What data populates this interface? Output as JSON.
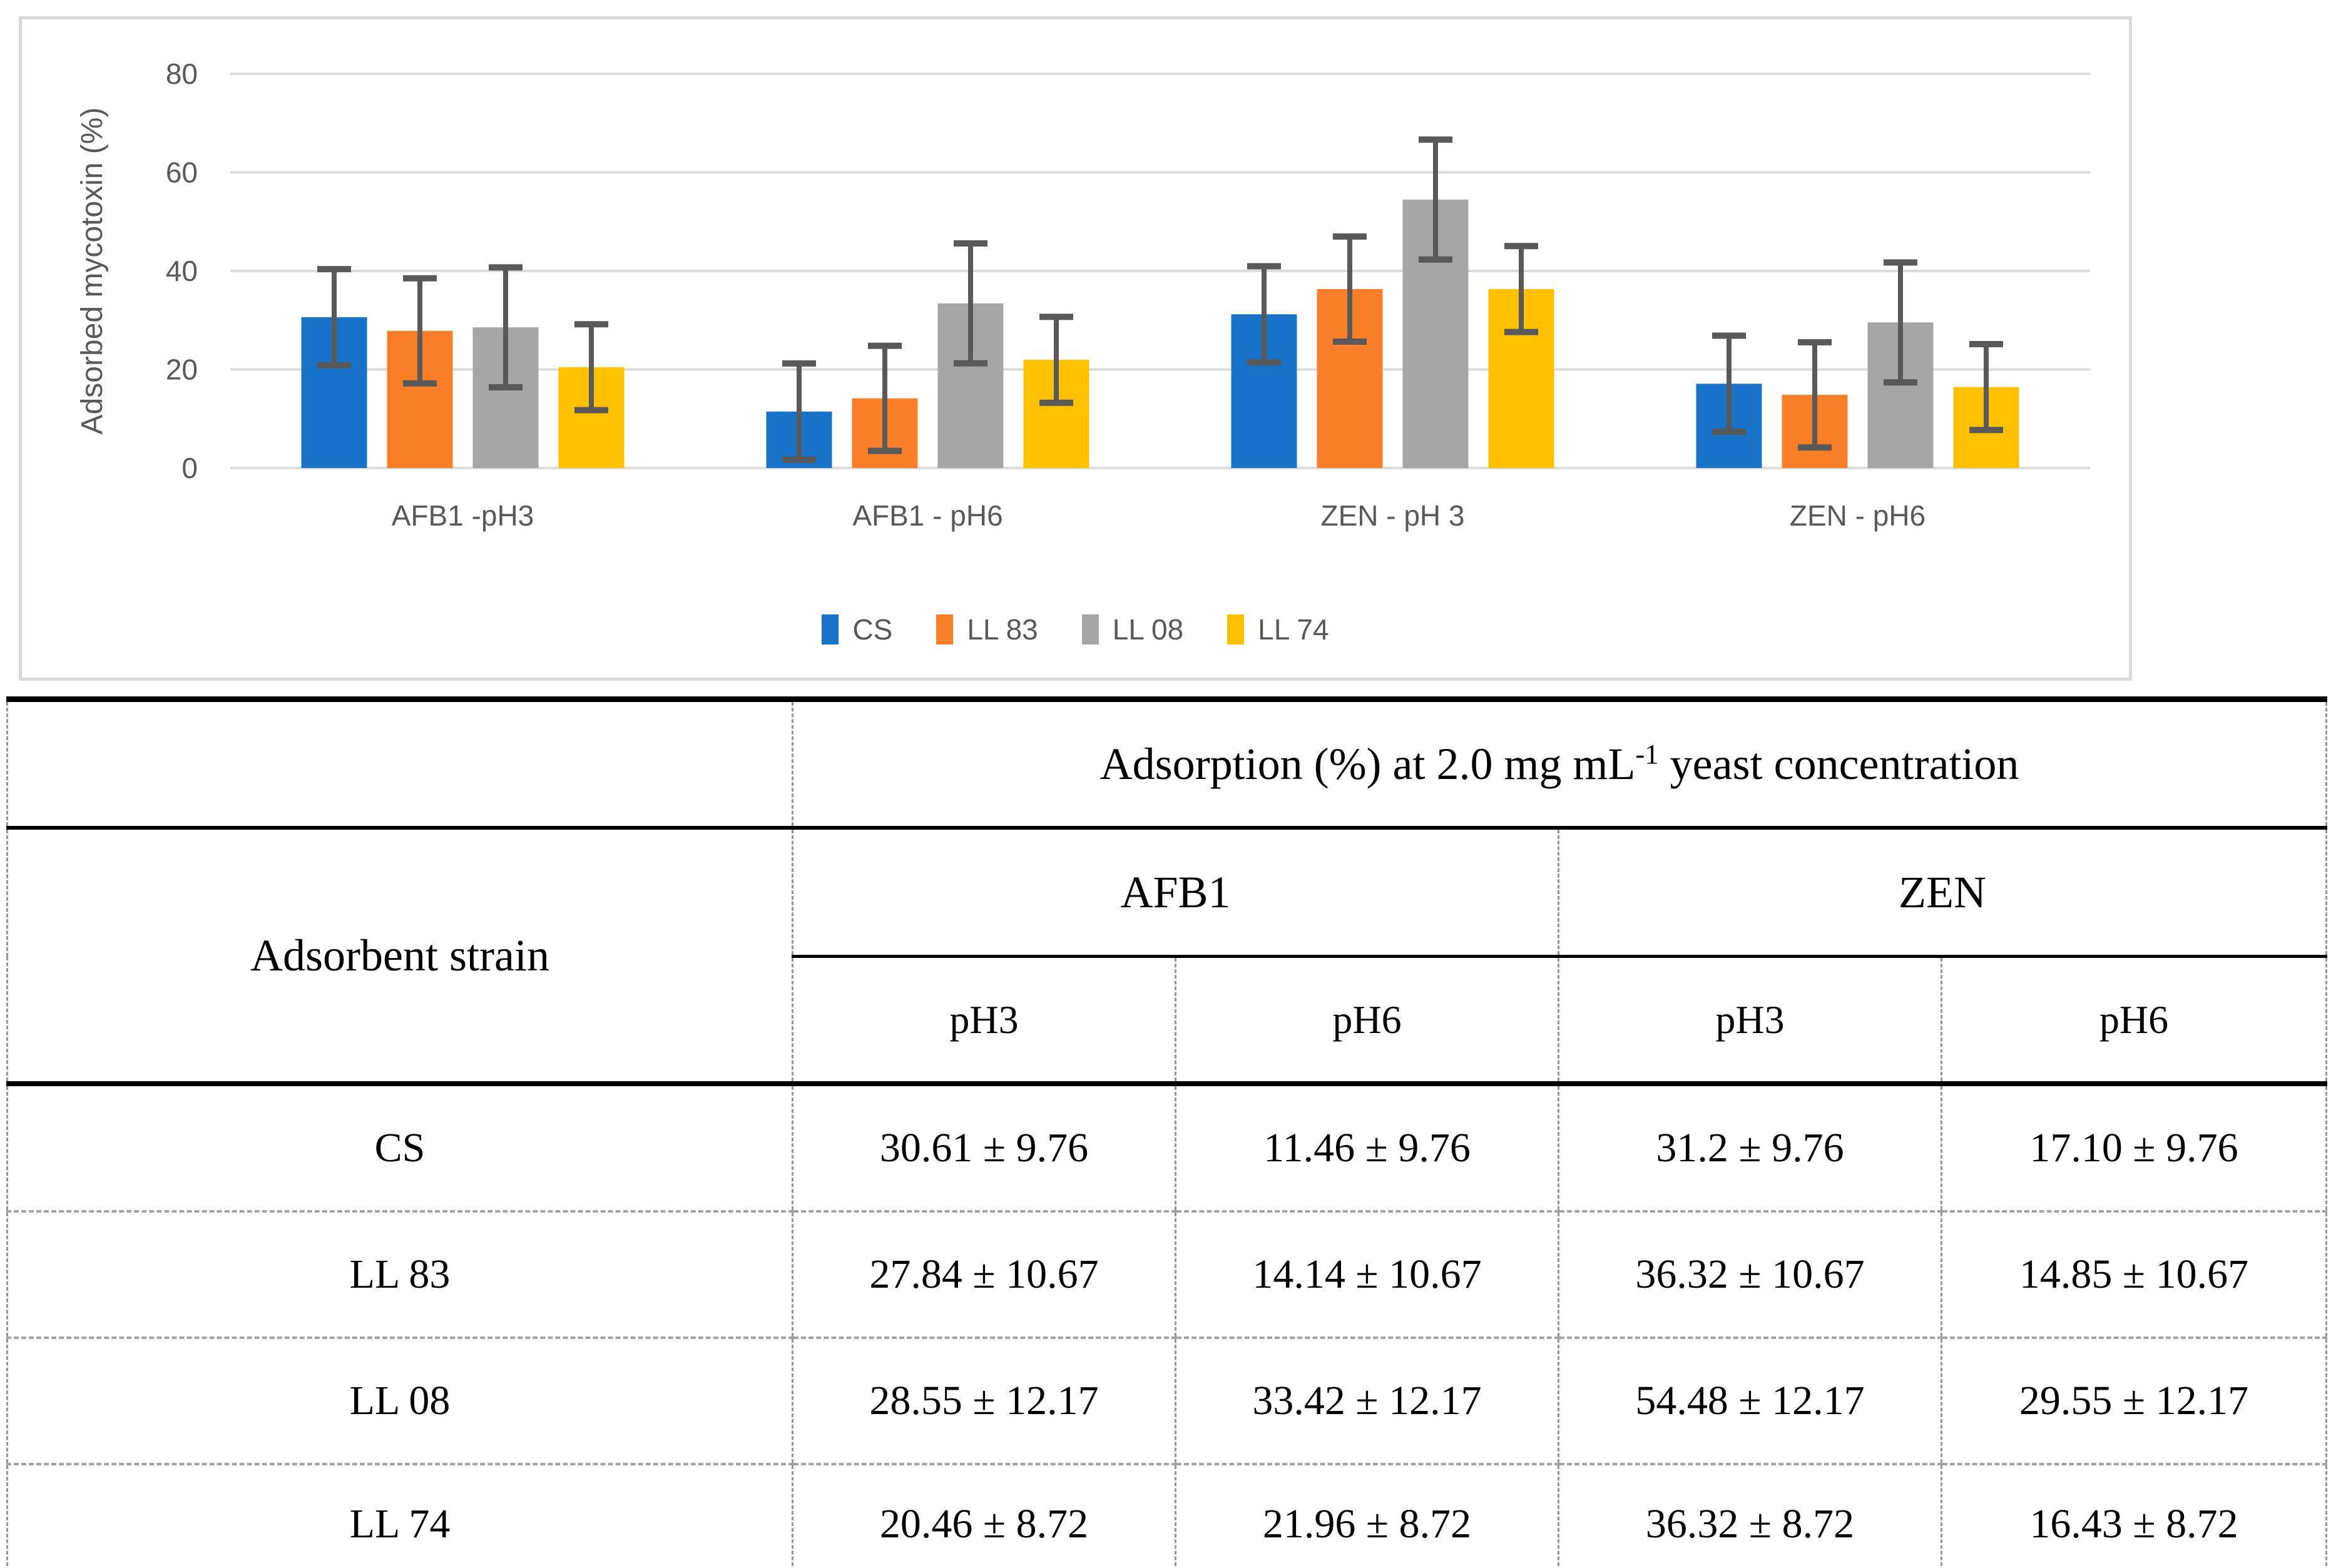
{
  "chart": {
    "y_axis_title": "Adsorbed mycotoxin (%)",
    "colors": {
      "gridline": "#DCDCDC",
      "axis_text": "#595959",
      "error_bar": "#595959",
      "panel_border": "#D9D9D9"
    }
  },
  "chart_data": {
    "type": "bar",
    "title": "",
    "xlabel": "",
    "ylabel": "Adsorbed mycotoxin (%)",
    "ylim": [
      0,
      80
    ],
    "yticks": [
      0,
      20,
      40,
      60,
      80
    ],
    "grid": true,
    "error_bars": true,
    "legend_position": "bottom",
    "categories": [
      "AFB1 -pH3",
      "AFB1 - pH6",
      "ZEN - pH 3",
      "ZEN - pH6"
    ],
    "series": [
      {
        "name": "CS",
        "color": "#1772C8",
        "values": [
          30.61,
          11.46,
          31.2,
          17.1
        ],
        "error": 9.76
      },
      {
        "name": "LL 83",
        "color": "#FA7D28",
        "values": [
          27.84,
          14.14,
          36.32,
          14.85
        ],
        "error": 10.67
      },
      {
        "name": "LL 08",
        "color": "#A6A6A6",
        "values": [
          28.55,
          33.42,
          54.48,
          29.55
        ],
        "error": 12.17
      },
      {
        "name": "LL 74",
        "color": "#FFC000",
        "values": [
          20.46,
          21.96,
          36.32,
          16.43
        ],
        "error": 8.72
      }
    ]
  },
  "table": {
    "header": {
      "title_prefix": "Adsorption (%) at 2.0 mg mL",
      "title_sup": "-1",
      "title_suffix": " yeast concentration",
      "strain_col": "Adsorbent strain",
      "group_afb1": "AFB1",
      "group_zen": "ZEN",
      "subcols": [
        "pH3",
        "pH6",
        "pH3",
        "pH6"
      ]
    },
    "rows": [
      {
        "strain": "CS",
        "values": [
          "30.61 ± 9.76",
          "11.46 ± 9.76",
          "31.2 ± 9.76",
          "17.10 ± 9.76"
        ]
      },
      {
        "strain": "LL 83",
        "values": [
          "27.84 ± 10.67",
          "14.14 ± 10.67",
          "36.32 ± 10.67",
          "14.85 ± 10.67"
        ]
      },
      {
        "strain": "LL 08",
        "values": [
          "28.55 ± 12.17",
          "33.42 ± 12.17",
          "54.48 ± 12.17",
          "29.55 ± 12.17"
        ]
      },
      {
        "strain": "LL 74",
        "values": [
          "20.46 ± 8.72",
          "21.96 ± 8.72",
          "36.32 ± 8.72",
          "16.43 ± 8.72"
        ]
      }
    ]
  }
}
